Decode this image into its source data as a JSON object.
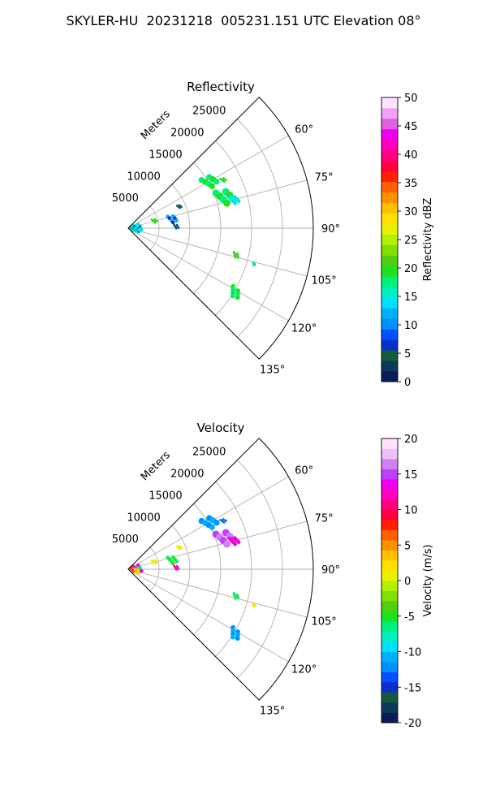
{
  "figure": {
    "title": "SKYLER-HU  20231218  005231.151 UTC Elevation 08°"
  },
  "colors": {
    "grid": "#b0b0b0",
    "axis": "#000000"
  },
  "chart_data": [
    {
      "type": "scatter",
      "subtype": "polar-sector PPI",
      "title": "Reflectivity",
      "radial_label": "Meters",
      "radial_ticks": [
        5000,
        10000,
        15000,
        20000,
        25000
      ],
      "radial_range": [
        0,
        30000
      ],
      "angle_range_deg": [
        45,
        135
      ],
      "angle_ticks": [
        "60°",
        "75°",
        "90°",
        "105°",
        "120°",
        "135°"
      ],
      "angle_tick_values": [
        60,
        75,
        90,
        105,
        120,
        135
      ],
      "grid": true,
      "colorbar": {
        "label": "Reflectivity dBZ",
        "range": [
          0,
          50
        ],
        "ticks": [
          "0",
          "5",
          "10",
          "15",
          "20",
          "25",
          "30",
          "35",
          "40",
          "45",
          "50"
        ],
        "stops": [
          "#0a1a5c",
          "#0a3a5a",
          "#145a3c",
          "#0a30c8",
          "#0050ff",
          "#0090ff",
          "#00b0ff",
          "#00e0ff",
          "#00f0c0",
          "#00f080",
          "#20e020",
          "#50d010",
          "#80e000",
          "#b0f000",
          "#e8f000",
          "#ffe000",
          "#ffc000",
          "#ff9000",
          "#ff6000",
          "#ff2000",
          "#ff0040",
          "#ff0080",
          "#ff00c0",
          "#f000f0",
          "#e060e0",
          "#f0a0f0",
          "#ffe0ff"
        ]
      },
      "echoes": [
        {
          "az": 60,
          "r": 15200,
          "size": 1400,
          "value": 18,
          "alt": 20
        },
        {
          "az": 63,
          "r": 17300,
          "size": 500,
          "value": 19,
          "alt": 20
        },
        {
          "az": 72,
          "r": 16500,
          "size": 1700,
          "value": 17,
          "alt": 19
        },
        {
          "az": 75,
          "r": 17800,
          "size": 900,
          "value": 14,
          "alt": 15
        },
        {
          "az": 67,
          "r": 9000,
          "size": 400,
          "value": 4,
          "alt": 9
        },
        {
          "az": 78,
          "r": 7300,
          "size": 900,
          "value": 12,
          "alt": 6
        },
        {
          "az": 74,
          "r": 4400,
          "size": 500,
          "value": 21,
          "alt": 19
        },
        {
          "az": 88,
          "r": 7800,
          "size": 500,
          "value": 4,
          "alt": 8
        },
        {
          "az": 83,
          "r": 1500,
          "size": 900,
          "value": 15,
          "alt": 11
        },
        {
          "az": 92,
          "r": 900,
          "size": 700,
          "value": 10,
          "alt": 18
        },
        {
          "az": 100,
          "r": 1400,
          "size": 600,
          "value": 11,
          "alt": 16
        },
        {
          "az": 104,
          "r": 18000,
          "size": 600,
          "value": 19,
          "alt": 21
        },
        {
          "az": 106,
          "r": 21200,
          "size": 250,
          "value": 18,
          "alt": 18
        },
        {
          "az": 121,
          "r": 20200,
          "size": 1100,
          "value": 20,
          "alt": 18
        }
      ]
    },
    {
      "type": "scatter",
      "subtype": "polar-sector PPI",
      "title": "Velocity",
      "radial_label": "Meters",
      "radial_ticks": [
        5000,
        10000,
        15000,
        20000,
        25000
      ],
      "radial_range": [
        0,
        30000
      ],
      "angle_range_deg": [
        45,
        135
      ],
      "angle_ticks": [
        "60°",
        "75°",
        "90°",
        "105°",
        "120°",
        "135°"
      ],
      "angle_tick_values": [
        60,
        75,
        90,
        105,
        120,
        135
      ],
      "grid": true,
      "colorbar": {
        "label": "Velocity (m/s)",
        "range": [
          -20,
          20
        ],
        "ticks": [
          "-20",
          "-15",
          "-10",
          "-5",
          "0",
          "5",
          "10",
          "15",
          "20"
        ],
        "stops": [
          "#0a1a5c",
          "#0a3a5a",
          "#145a3c",
          "#0a30c8",
          "#0050ff",
          "#0090ff",
          "#00b0ff",
          "#00e0ff",
          "#00f0c0",
          "#00f080",
          "#20e020",
          "#50d010",
          "#80e000",
          "#b0f000",
          "#e8f000",
          "#ffe000",
          "#ffc000",
          "#ff9000",
          "#ff6000",
          "#ff2000",
          "#ff0040",
          "#ff0080",
          "#ff00c0",
          "#f000f0",
          "#c040ff",
          "#d080f0",
          "#f0c0f8",
          "#ffe0ff"
        ]
      },
      "echoes": [
        {
          "az": 60,
          "r": 15200,
          "size": 1400,
          "value": -12,
          "alt": -11
        },
        {
          "az": 63,
          "r": 17300,
          "size": 500,
          "value": -14,
          "alt": -12
        },
        {
          "az": 72,
          "r": 16500,
          "size": 1700,
          "value": 15,
          "alt": 16
        },
        {
          "az": 75,
          "r": 17800,
          "size": 900,
          "value": 13,
          "alt": 12
        },
        {
          "az": 67,
          "r": 9000,
          "size": 400,
          "value": 1,
          "alt": 2
        },
        {
          "az": 78,
          "r": 7300,
          "size": 900,
          "value": -6,
          "alt": -4
        },
        {
          "az": 74,
          "r": 4400,
          "size": 500,
          "value": 2,
          "alt": 0
        },
        {
          "az": 88,
          "r": 7800,
          "size": 500,
          "value": 13,
          "alt": 11
        },
        {
          "az": 83,
          "r": 1500,
          "size": 900,
          "value": 14,
          "alt": -6
        },
        {
          "az": 92,
          "r": 900,
          "size": 700,
          "value": 10,
          "alt": 6
        },
        {
          "az": 100,
          "r": 1400,
          "size": 600,
          "value": 3,
          "alt": 0
        },
        {
          "az": 104,
          "r": 18000,
          "size": 600,
          "value": -6,
          "alt": -5
        },
        {
          "az": 106,
          "r": 21200,
          "size": 250,
          "value": 0,
          "alt": 2
        },
        {
          "az": 121,
          "r": 20200,
          "size": 1100,
          "value": -12,
          "alt": -11
        }
      ]
    }
  ]
}
